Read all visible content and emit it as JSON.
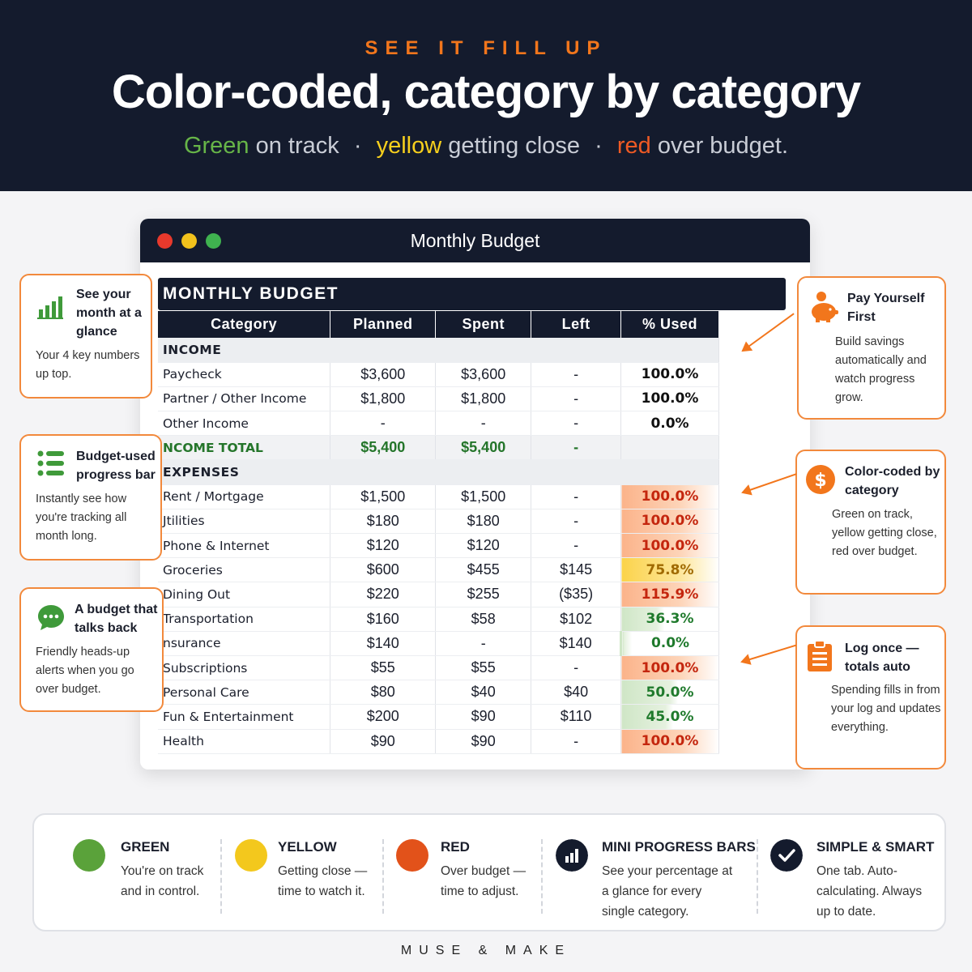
{
  "hero": {
    "eyebrow": "SEE IT FILL UP",
    "title": "Color-coded, category by category",
    "sub_green": "Green",
    "sub_green_rest": " on track",
    "sub_yellow": "yellow",
    "sub_yellow_rest": " getting close",
    "sub_red": "red",
    "sub_red_rest": " over budget.",
    "sep": "·"
  },
  "window": {
    "title": "Monthly Budget",
    "sheet_title": "MONTHLY BUDGET",
    "columns": [
      "Category",
      "Planned",
      "Spent",
      "Left",
      "% Used"
    ]
  },
  "rows": [
    {
      "type": "section",
      "category": "INCOME"
    },
    {
      "type": "row",
      "category": "Paycheck",
      "planned": "$3,600",
      "spent": "$3,600",
      "left": "-",
      "pct": "100.0%",
      "status": "full"
    },
    {
      "type": "row",
      "category": "Partner / Other Income",
      "planned": "$1,800",
      "spent": "$1,800",
      "left": "-",
      "pct": "100.0%",
      "status": "full"
    },
    {
      "type": "row",
      "category": "Other Income",
      "planned": "-",
      "spent": "-",
      "left": "-",
      "pct": "0.0%",
      "status": "full"
    },
    {
      "type": "total",
      "category": "NCOME TOTAL",
      "planned": "$5,400",
      "spent": "$5,400",
      "left": "-",
      "pct": ""
    },
    {
      "type": "section",
      "category": "EXPENSES"
    },
    {
      "type": "row",
      "category": "Rent / Mortgage",
      "planned": "$1,500",
      "spent": "$1,500",
      "left": "-",
      "pct": "100.0%",
      "status": "red",
      "used": 1.0
    },
    {
      "type": "row",
      "category": "Jtilities",
      "planned": "$180",
      "spent": "$180",
      "left": "-",
      "pct": "100.0%",
      "status": "red",
      "used": 1.0
    },
    {
      "type": "row",
      "category": "Phone & Internet",
      "planned": "$120",
      "spent": "$120",
      "left": "-",
      "pct": "100.0%",
      "status": "red",
      "used": 1.0
    },
    {
      "type": "row",
      "category": "Groceries",
      "planned": "$600",
      "spent": "$455",
      "left": "$145",
      "pct": "75.8%",
      "status": "yellow",
      "used": 0.758
    },
    {
      "type": "row",
      "category": "Dining Out",
      "planned": "$220",
      "spent": "$255",
      "left": "($35)",
      "pct": "115.9%",
      "status": "red",
      "used": 1.159
    },
    {
      "type": "row",
      "category": "Transportation",
      "planned": "$160",
      "spent": "$58",
      "left": "$102",
      "pct": "36.3%",
      "status": "green",
      "used": 0.363
    },
    {
      "type": "row",
      "category": "nsurance",
      "planned": "$140",
      "spent": "-",
      "left": "$140",
      "pct": "0.0%",
      "status": "green",
      "used": 0.0
    },
    {
      "type": "row",
      "category": "Subscriptions",
      "planned": "$55",
      "spent": "$55",
      "left": "-",
      "pct": "100.0%",
      "status": "red",
      "used": 1.0
    },
    {
      "type": "row",
      "category": "Personal Care",
      "planned": "$80",
      "spent": "$40",
      "left": "$40",
      "pct": "50.0%",
      "status": "green",
      "used": 0.5
    },
    {
      "type": "row",
      "category": "Fun & Entertainment",
      "planned": "$200",
      "spent": "$90",
      "left": "$110",
      "pct": "45.0%",
      "status": "green",
      "used": 0.45
    },
    {
      "type": "row",
      "category": "Health",
      "planned": "$90",
      "spent": "$90",
      "left": "-",
      "pct": "100.0%",
      "status": "red",
      "used": 1.0
    }
  ],
  "callouts": {
    "glance": {
      "title": "See your month at a glance",
      "desc": "Your 4 key numbers up top.",
      "icon": "bar-chart-icon"
    },
    "progress": {
      "title": "Budget-used progress bar",
      "desc": "Instantly see how you're tracking all month long.",
      "icon": "list-icon"
    },
    "talks": {
      "title": "A budget that talks back",
      "desc": "Friendly heads-up alerts when you go over budget.",
      "icon": "chat-bubble-icon"
    },
    "payyourself": {
      "title": "Pay Yourself First",
      "desc": "Build savings automatically and watch progress grow.",
      "icon": "piggy-bank-icon"
    },
    "colorcoded": {
      "title": "Color-coded by category",
      "desc": "Green on track, yellow getting close, red over budget.",
      "icon": "dollar-icon"
    },
    "logonce": {
      "title": "Log once — totals auto",
      "desc": "Spending fills in from your log and updates everything.",
      "icon": "clipboard-icon"
    }
  },
  "legend": [
    {
      "key": "green",
      "title": "GREEN",
      "desc": "You're on track and in control.",
      "color": "#5aa23a"
    },
    {
      "key": "yellow",
      "title": "YELLOW",
      "desc": "Getting close — time to watch it.",
      "color": "#f3c81d"
    },
    {
      "key": "red",
      "title": "RED",
      "desc": "Over budget — time to adjust.",
      "color": "#e2521a"
    },
    {
      "key": "bars",
      "title": "MINI PROGRESS BARS",
      "desc": "See your percentage at a glance for every single category.",
      "color": "#141b2d"
    },
    {
      "key": "smart",
      "title": "SIMPLE & SMART",
      "desc": "One tab. Auto-calculating. Always up to date.",
      "color": "#141b2d"
    }
  ],
  "brand": "MUSE & MAKE",
  "colors": {
    "navy": "#141b2d",
    "accent": "#f2761c",
    "green": "#5aa23a",
    "yellow": "#f3c81d",
    "red": "#e2521a"
  }
}
